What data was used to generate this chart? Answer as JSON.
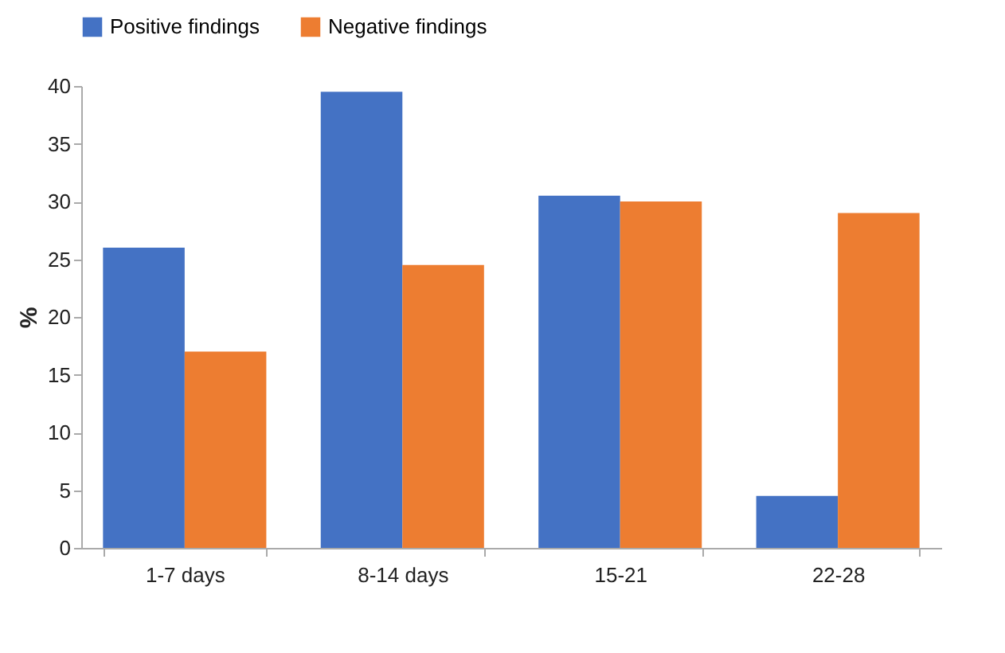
{
  "chart_data": {
    "type": "bar",
    "ylabel": "%",
    "categories": [
      "1-7 days",
      "8-14 days",
      "15-21",
      "22-28"
    ],
    "series": [
      {
        "name": "Positive findings",
        "color": "#4472c4",
        "values": [
          26,
          39.5,
          30.5,
          4.5
        ]
      },
      {
        "name": "Negative findings",
        "color": "#ed7d31",
        "values": [
          17,
          24.5,
          30,
          29
        ]
      }
    ],
    "ylim": [
      0,
      40
    ],
    "yticks": [
      0,
      5,
      10,
      15,
      20,
      25,
      30,
      35,
      40
    ],
    "legend": "top"
  }
}
